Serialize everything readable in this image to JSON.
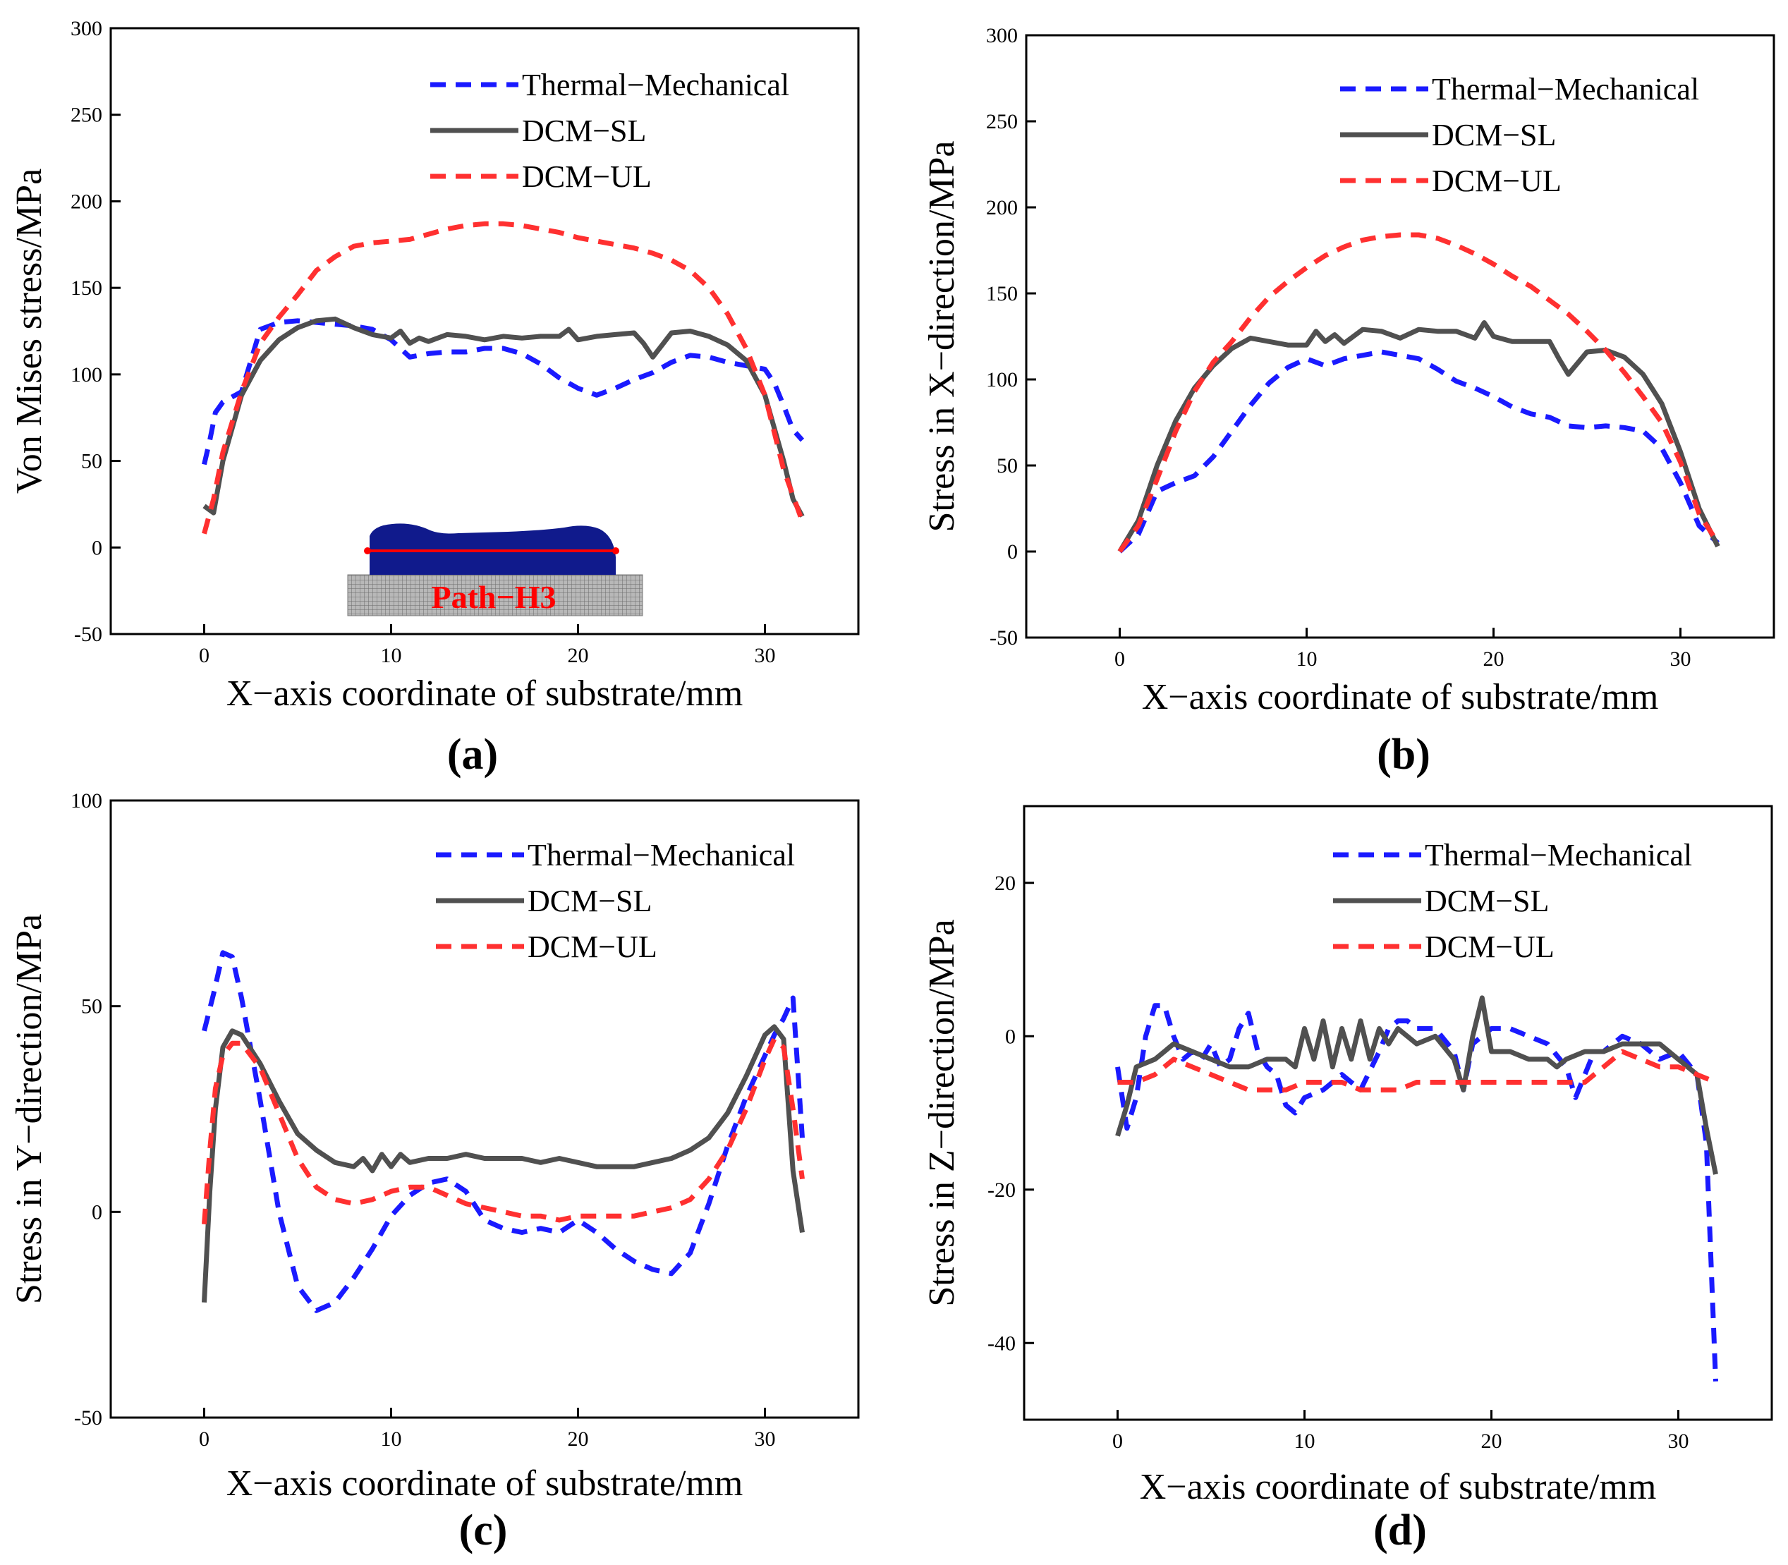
{
  "figure": {
    "colors": {
      "thermal": "#1a1aff",
      "sl": "#505050",
      "ul": "#ff3030",
      "deposit": "#101a8c",
      "substrate": "#9a9a9a",
      "path_line": "#ff0000"
    }
  },
  "chart_data": [
    {
      "id": "a",
      "type": "line",
      "panel_label": "(a)",
      "xlabel": "X−axis coordinate of substrate/mm",
      "ylabel": "Von Mises stress/MPa",
      "xlim": [
        -5,
        35
      ],
      "ylim": [
        -50,
        300
      ],
      "xticks": [
        0,
        10,
        20,
        30
      ],
      "yticks": [
        -50,
        0,
        50,
        100,
        150,
        200,
        250,
        300
      ],
      "xtick_labels": [
        "0",
        "10",
        "20",
        "30"
      ],
      "ytick_labels": [
        "-50",
        "0",
        "50",
        "100",
        "150",
        "200",
        "250",
        "300"
      ],
      "inset_label": "Path−H3",
      "legend": [
        "Thermal−Mechanical",
        "DCM−SL",
        "DCM−UL"
      ],
      "series": [
        {
          "name": "Thermal−Mechanical",
          "x": [
            0,
            0.3,
            0.6,
            1,
            2,
            3,
            4,
            5,
            6,
            7,
            8,
            9,
            10,
            11,
            12,
            13,
            14,
            15,
            16,
            17,
            18,
            19,
            20,
            21,
            22,
            23,
            24,
            25,
            26,
            27,
            28,
            29,
            30,
            30.5,
            31,
            31.5,
            32
          ],
          "y": [
            48,
            62,
            78,
            84,
            90,
            126,
            130,
            131,
            130,
            129,
            128,
            126,
            120,
            110,
            112,
            113,
            113,
            115,
            115,
            112,
            106,
            98,
            92,
            88,
            92,
            97,
            101,
            107,
            111,
            110,
            107,
            105,
            103,
            95,
            82,
            68,
            62
          ]
        },
        {
          "name": "DCM−SL",
          "x": [
            0,
            0.5,
            1,
            2,
            3,
            4,
            5,
            6,
            7,
            8,
            9,
            10,
            10.5,
            11,
            11.5,
            12,
            13,
            14,
            15,
            16,
            17,
            18,
            19,
            19.5,
            20,
            21,
            22,
            23,
            23.5,
            24,
            24.5,
            25,
            26,
            27,
            28,
            29,
            30,
            31,
            31.5,
            32
          ],
          "y": [
            24,
            20,
            50,
            88,
            108,
            120,
            127,
            131,
            132,
            127,
            123,
            121,
            125,
            118,
            121,
            119,
            123,
            122,
            120,
            122,
            121,
            122,
            122,
            126,
            120,
            122,
            123,
            124,
            118,
            110,
            117,
            124,
            125,
            122,
            117,
            108,
            88,
            50,
            28,
            18
          ]
        },
        {
          "name": "DCM−UL",
          "x": [
            0,
            0.5,
            1,
            2,
            3,
            4,
            5,
            6,
            7,
            8,
            9,
            10,
            11,
            12,
            13,
            14,
            15,
            16,
            17,
            18,
            19,
            20,
            21,
            22,
            23,
            24,
            25,
            26,
            27,
            28,
            29,
            30,
            31,
            32
          ],
          "y": [
            8,
            28,
            55,
            90,
            118,
            133,
            146,
            160,
            168,
            174,
            176,
            177,
            178,
            181,
            184,
            186,
            187,
            187,
            186,
            184,
            182,
            179,
            177,
            175,
            173,
            170,
            166,
            160,
            150,
            135,
            115,
            88,
            45,
            15
          ]
        }
      ]
    },
    {
      "id": "b",
      "type": "line",
      "panel_label": "(b)",
      "xlabel": "X−axis coordinate of substrate/mm",
      "ylabel": "Stress in X−direction/MPa",
      "xlim": [
        -5,
        35
      ],
      "ylim": [
        -50,
        300
      ],
      "xticks": [
        0,
        10,
        20,
        30
      ],
      "yticks": [
        -50,
        0,
        50,
        100,
        150,
        200,
        250,
        300
      ],
      "xtick_labels": [
        "0",
        "10",
        "20",
        "30"
      ],
      "ytick_labels": [
        "-50",
        "0",
        "50",
        "100",
        "150",
        "200",
        "250",
        "300"
      ],
      "legend": [
        "Thermal−Mechanical",
        "DCM−SL",
        "DCM−UL"
      ],
      "series": [
        {
          "name": "Thermal−Mechanical",
          "x": [
            0,
            1,
            2,
            3,
            4,
            5,
            6,
            7,
            8,
            9,
            10,
            11,
            12,
            13,
            14,
            15,
            16,
            17,
            18,
            19,
            20,
            21,
            22,
            23,
            24,
            25,
            26,
            27,
            28,
            29,
            30,
            31,
            32
          ],
          "y": [
            0,
            10,
            35,
            40,
            44,
            55,
            70,
            85,
            98,
            107,
            112,
            108,
            112,
            114,
            116,
            114,
            112,
            106,
            99,
            95,
            90,
            84,
            80,
            78,
            73,
            72,
            73,
            72,
            70,
            60,
            40,
            15,
            5
          ]
        },
        {
          "name": "DCM−SL",
          "x": [
            0,
            1,
            2,
            3,
            4,
            5,
            6,
            7,
            8,
            9,
            10,
            10.5,
            11,
            11.5,
            12,
            13,
            14,
            15,
            16,
            17,
            18,
            19,
            19.5,
            20,
            21,
            22,
            23,
            23.5,
            24,
            25,
            26,
            27,
            28,
            29,
            30,
            31,
            32
          ],
          "y": [
            0,
            18,
            50,
            76,
            95,
            108,
            118,
            124,
            122,
            120,
            120,
            128,
            122,
            126,
            121,
            129,
            128,
            124,
            129,
            128,
            128,
            124,
            133,
            125,
            122,
            122,
            122,
            112,
            103,
            116,
            117,
            113,
            103,
            86,
            58,
            25,
            3
          ]
        },
        {
          "name": "DCM−UL",
          "x": [
            0,
            1,
            2,
            3,
            4,
            5,
            6,
            7,
            8,
            9,
            10,
            11,
            12,
            13,
            14,
            15,
            16,
            17,
            18,
            19,
            20,
            21,
            22,
            23,
            24,
            25,
            26,
            27,
            28,
            29,
            30,
            31,
            32
          ],
          "y": [
            0,
            15,
            42,
            70,
            93,
            110,
            122,
            136,
            148,
            157,
            165,
            172,
            177,
            181,
            183,
            184,
            184,
            182,
            178,
            173,
            167,
            160,
            154,
            146,
            138,
            128,
            117,
            104,
            90,
            75,
            52,
            22,
            5
          ]
        }
      ]
    },
    {
      "id": "c",
      "type": "line",
      "panel_label": "(c)",
      "xlabel": "X−axis coordinate of substrate/mm",
      "ylabel": "Stress in Y−direction/MPa",
      "xlim": [
        -5,
        35
      ],
      "ylim": [
        -50,
        100
      ],
      "xticks": [
        0,
        10,
        20,
        30
      ],
      "yticks": [
        -50,
        0,
        50,
        100
      ],
      "xtick_labels": [
        "0",
        "10",
        "20",
        "30"
      ],
      "ytick_labels": [
        "-50",
        "0",
        "50",
        "100"
      ],
      "legend": [
        "Thermal−Mechanical",
        "DCM−SL",
        "DCM−UL"
      ],
      "series": [
        {
          "name": "Thermal−Mechanical",
          "x": [
            0,
            0.5,
            1,
            1.5,
            2,
            3,
            4,
            5,
            6,
            7,
            8,
            9,
            10,
            11,
            12,
            13,
            14,
            15,
            16,
            17,
            18,
            19,
            20,
            21,
            22,
            23,
            24,
            25,
            26,
            27,
            28,
            29,
            30,
            30.5,
            31,
            31.5,
            32
          ],
          "y": [
            44,
            53,
            63,
            62,
            52,
            27,
            0,
            -18,
            -24,
            -22,
            -16,
            -9,
            -1,
            4,
            7,
            8,
            5,
            -2,
            -4,
            -5,
            -4,
            -5,
            -2,
            -5,
            -9,
            -12,
            -14,
            -15,
            -10,
            2,
            16,
            28,
            38,
            43,
            47,
            52,
            18
          ]
        },
        {
          "name": "DCM−SL",
          "x": [
            0,
            0.3,
            0.6,
            1,
            1.5,
            2,
            3,
            4,
            5,
            6,
            7,
            8,
            8.5,
            9,
            9.5,
            10,
            10.5,
            11,
            12,
            13,
            14,
            15,
            16,
            17,
            18,
            19,
            20,
            21,
            22,
            23,
            24,
            25,
            26,
            27,
            28,
            29,
            30,
            30.5,
            31,
            31.5,
            32
          ],
          "y": [
            -22,
            5,
            25,
            40,
            44,
            43,
            36,
            27,
            19,
            15,
            12,
            11,
            13,
            10,
            14,
            11,
            14,
            12,
            13,
            13,
            14,
            13,
            13,
            13,
            12,
            13,
            12,
            11,
            11,
            11,
            12,
            13,
            15,
            18,
            24,
            33,
            43,
            45,
            42,
            10,
            -5
          ]
        },
        {
          "name": "DCM−UL",
          "x": [
            0,
            0.3,
            0.6,
            1,
            1.5,
            2,
            3,
            4,
            5,
            6,
            7,
            8,
            9,
            10,
            11,
            12,
            13,
            14,
            15,
            16,
            17,
            18,
            19,
            20,
            21,
            22,
            23,
            24,
            25,
            26,
            27,
            28,
            29,
            30,
            30.5,
            31,
            31.5,
            32
          ],
          "y": [
            -3,
            15,
            30,
            38,
            41,
            41,
            35,
            24,
            13,
            6,
            3,
            2,
            3,
            5,
            6,
            6,
            4,
            2,
            1,
            0,
            -1,
            -1,
            -2,
            -1,
            -1,
            -1,
            -1,
            0,
            1,
            3,
            8,
            15,
            25,
            37,
            42,
            40,
            25,
            8
          ]
        }
      ]
    },
    {
      "id": "d",
      "type": "line",
      "panel_label": "(d)",
      "xlabel": "X−axis coordinate of substrate/mm",
      "ylabel": "Stress in Z−direction/MPa",
      "xlim": [
        -5,
        35
      ],
      "ylim": [
        -50,
        30
      ],
      "xticks": [
        0,
        10,
        20,
        30
      ],
      "yticks": [
        -40,
        -20,
        0,
        20
      ],
      "xtick_labels": [
        "0",
        "10",
        "20",
        "30"
      ],
      "ytick_labels": [
        "-40",
        "-20",
        "0",
        "20"
      ],
      "legend": [
        "Thermal−Mechanical",
        "DCM−SL",
        "DCM−UL"
      ],
      "series": [
        {
          "name": "Thermal−Mechanical",
          "x": [
            0,
            0.5,
            1,
            1.5,
            2,
            2.5,
            3,
            3.5,
            4,
            4.5,
            5,
            5.5,
            6,
            6.5,
            7,
            7.5,
            8,
            8.5,
            9,
            9.5,
            10,
            11,
            11.5,
            12,
            13,
            14,
            14.5,
            15,
            15.5,
            16,
            17,
            18,
            18.5,
            19,
            20,
            21,
            22,
            23,
            24,
            24.5,
            25,
            25.5,
            26,
            27,
            28,
            29,
            30,
            31,
            31.5,
            32
          ],
          "y": [
            -4,
            -12,
            -8,
            0,
            4,
            4,
            0,
            -3,
            -2,
            -3,
            -1,
            -4,
            -3,
            1,
            3,
            -2,
            -4,
            -5,
            -9,
            -10,
            -8,
            -7,
            -6,
            -5,
            -7,
            -2,
            1,
            2,
            2,
            1,
            1,
            -2,
            -7,
            -1,
            1,
            1,
            0,
            -1,
            -4,
            -8,
            -5,
            -2,
            -2,
            0,
            -1,
            -3,
            -2,
            -5,
            -14,
            -45
          ]
        },
        {
          "name": "DCM−SL",
          "x": [
            0,
            0.5,
            1,
            2,
            3,
            4,
            5,
            6,
            7,
            8,
            9,
            9.5,
            10,
            10.5,
            11,
            11.5,
            12,
            12.5,
            13,
            13.5,
            14,
            14.5,
            15,
            16,
            17,
            18,
            18.5,
            19,
            19.5,
            20,
            21,
            22,
            23,
            23.5,
            24,
            25,
            26,
            27,
            28,
            29,
            30,
            31,
            31.5,
            32
          ],
          "y": [
            -13,
            -9,
            -4,
            -3,
            -1,
            -2,
            -3,
            -4,
            -4,
            -3,
            -3,
            -4,
            1,
            -3,
            2,
            -4,
            1,
            -3,
            2,
            -3,
            1,
            -1,
            1,
            -1,
            0,
            -3,
            -7,
            0,
            5,
            -2,
            -2,
            -3,
            -3,
            -4,
            -3,
            -2,
            -2,
            -1,
            -1,
            -1,
            -3,
            -5,
            -12,
            -18
          ]
        },
        {
          "name": "DCM−UL",
          "x": [
            0,
            1,
            2,
            3,
            4,
            5,
            6,
            7,
            8,
            9,
            10,
            11,
            12,
            13,
            14,
            15,
            16,
            17,
            18,
            19,
            20,
            21,
            22,
            23,
            24,
            25,
            26,
            27,
            28,
            29,
            30,
            31,
            32
          ],
          "y": [
            -6,
            -6,
            -5,
            -3,
            -4,
            -5,
            -6,
            -7,
            -7,
            -7,
            -6,
            -6,
            -6,
            -7,
            -7,
            -7,
            -6,
            -6,
            -6,
            -6,
            -6,
            -6,
            -6,
            -6,
            -6,
            -6,
            -4,
            -2,
            -3,
            -4,
            -4,
            -5,
            -6
          ]
        }
      ]
    }
  ]
}
